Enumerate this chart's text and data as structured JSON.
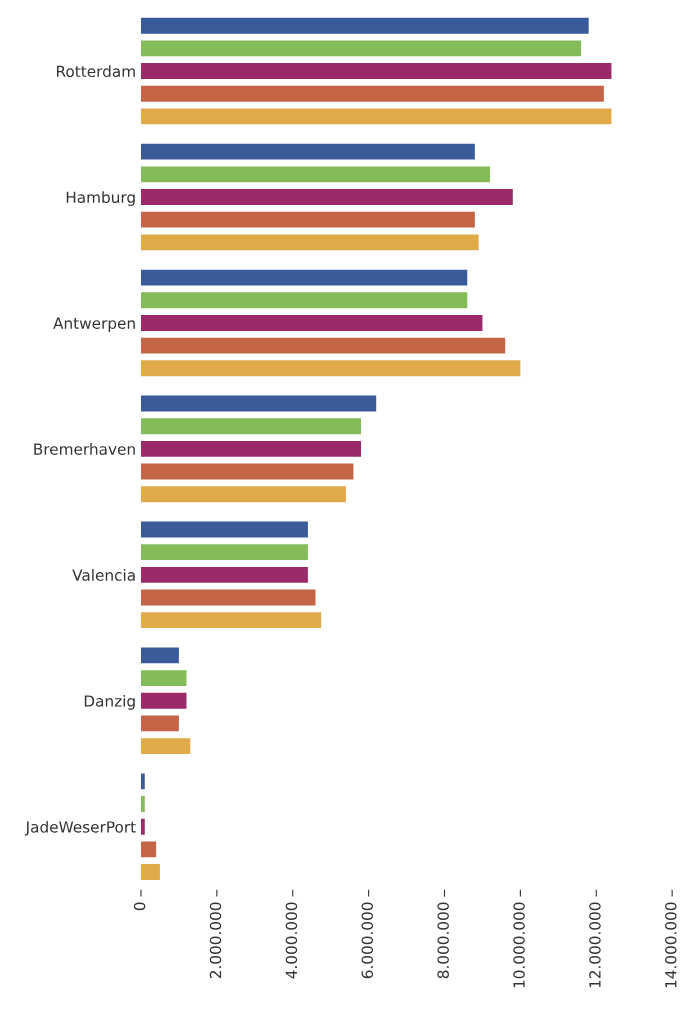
{
  "chart_data": {
    "type": "bar",
    "orientation": "horizontal",
    "categories": [
      "Rotterdam",
      "Hamburg",
      "Antwerpen",
      "Bremerhaven",
      "Valencia",
      "Danzig",
      "JadeWeserPort"
    ],
    "series": [
      {
        "color": "#3a5a9a",
        "values": [
          11800000,
          8800000,
          8600000,
          6200000,
          4400000,
          1000000,
          100000
        ]
      },
      {
        "color": "#84bc5a",
        "values": [
          11600000,
          9200000,
          8600000,
          5800000,
          4400000,
          1200000,
          100000
        ]
      },
      {
        "color": "#9a2a6a",
        "values": [
          12400000,
          9800000,
          9000000,
          5800000,
          4400000,
          1200000,
          100000
        ]
      },
      {
        "color": "#c46646",
        "values": [
          12200000,
          8800000,
          9600000,
          5600000,
          4600000,
          1000000,
          400000
        ]
      },
      {
        "color": "#e0aa48",
        "values": [
          12400000,
          8900000,
          10000000,
          5400000,
          4750000,
          1300000,
          500000
        ]
      }
    ],
    "xlim": [
      0,
      14000000
    ],
    "xticks": [
      {
        "value": 0,
        "label": "0"
      },
      {
        "value": 2000000,
        "label": "2.000.000"
      },
      {
        "value": 4000000,
        "label": "4.000.000"
      },
      {
        "value": 6000000,
        "label": "6.000.000"
      },
      {
        "value": 8000000,
        "label": "8.000.000"
      },
      {
        "value": 10000000,
        "label": "10.000.000"
      },
      {
        "value": 12000000,
        "label": "12.000.000"
      },
      {
        "value": 14000000,
        "label": "14.000.000"
      }
    ],
    "grid": false
  }
}
